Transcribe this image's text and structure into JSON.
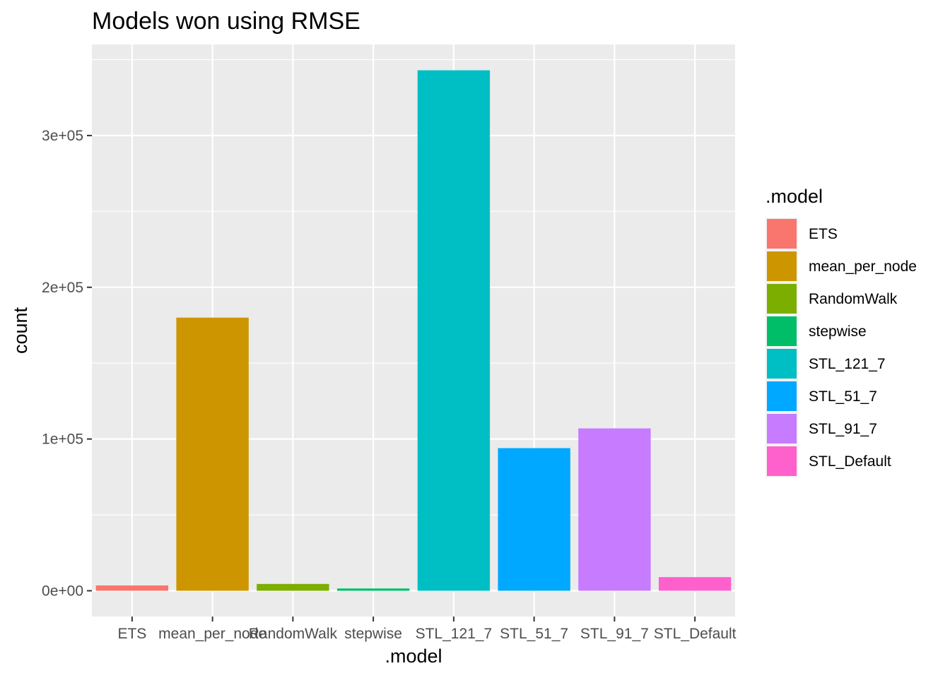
{
  "chart_data": {
    "type": "bar",
    "title": "Models won using RMSE",
    "xlabel": ".model",
    "ylabel": "count",
    "categories": [
      "ETS",
      "mean_per_node",
      "RandomWalk",
      "stepwise",
      "STL_121_7",
      "STL_51_7",
      "STL_91_7",
      "STL_Default"
    ],
    "values": [
      3500,
      180000,
      4500,
      1500,
      343000,
      94000,
      107000,
      9000
    ],
    "colors": [
      "#F8766D",
      "#CD9600",
      "#7CAE00",
      "#00BE67",
      "#00BFC4",
      "#00A9FF",
      "#C77CFF",
      "#FF61CC"
    ],
    "ylim": [
      -17000,
      360000
    ],
    "y_ticks": [
      {
        "value": 0,
        "label": "0e+00"
      },
      {
        "value": 100000,
        "label": "1e+05"
      },
      {
        "value": 200000,
        "label": "2e+05"
      },
      {
        "value": 300000,
        "label": "3e+05"
      }
    ],
    "y_minor_ticks": [
      50000,
      150000,
      250000,
      350000
    ],
    "grid": true,
    "panel_background": "#EBEBEB",
    "grid_color": "#FFFFFF",
    "legend": {
      "title": ".model",
      "placement": "right"
    }
  }
}
